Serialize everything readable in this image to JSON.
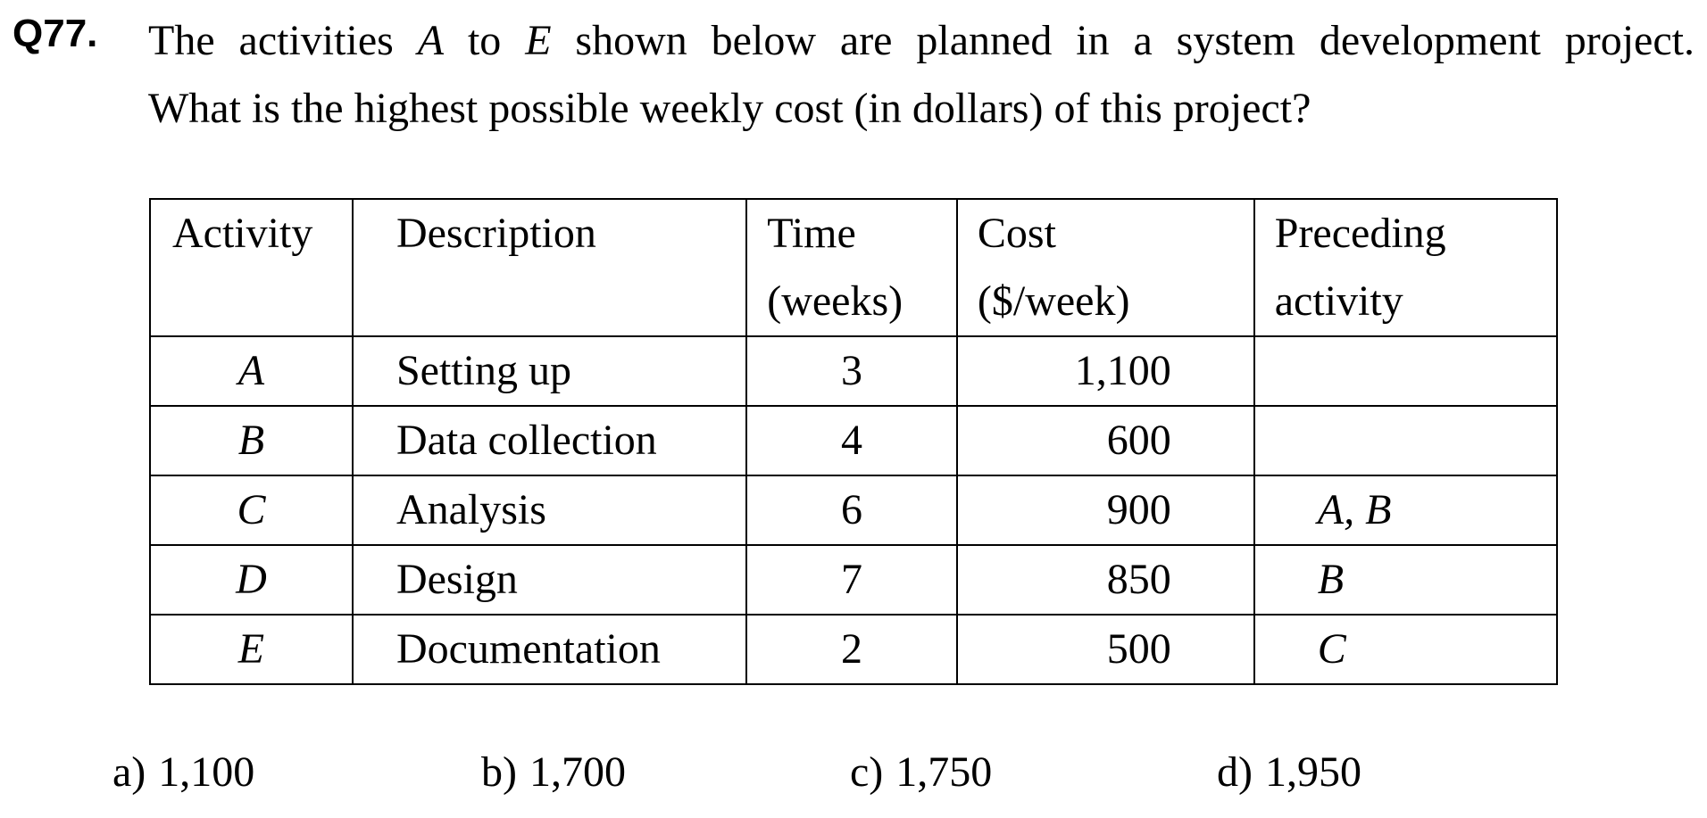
{
  "question": {
    "number": "Q77.",
    "line1": {
      "t1": "The activities ",
      "a": "A",
      "t2": " to ",
      "e": "E",
      "t3": " shown below are planned in a system development project."
    },
    "line2": "What is the highest possible weekly cost (in dollars) of this project?"
  },
  "table": {
    "headers": {
      "activity": "Activity",
      "description": "Description",
      "time_1": "Time",
      "time_2": "(weeks)",
      "cost_1": "Cost",
      "cost_2": "($/week)",
      "preceding_1": "Preceding",
      "preceding_2": "activity"
    },
    "rows": [
      {
        "activity": "A",
        "description": "Setting up",
        "time": "3",
        "cost": "1,100",
        "preceding": ""
      },
      {
        "activity": "B",
        "description": "Data collection",
        "time": "4",
        "cost": "600",
        "preceding": ""
      },
      {
        "activity": "C",
        "description": "Analysis",
        "time": "6",
        "cost": "900",
        "preceding": "A, B"
      },
      {
        "activity": "D",
        "description": "Design",
        "time": "7",
        "cost": "850",
        "preceding": "B"
      },
      {
        "activity": "E",
        "description": "Documentation",
        "time": "2",
        "cost": "500",
        "preceding": "C"
      }
    ]
  },
  "options": [
    {
      "letter": "a)",
      "value": "1,100"
    },
    {
      "letter": "b)",
      "value": "1,700"
    },
    {
      "letter": "c)",
      "value": "1,750"
    },
    {
      "letter": "d)",
      "value": "1,950"
    }
  ]
}
